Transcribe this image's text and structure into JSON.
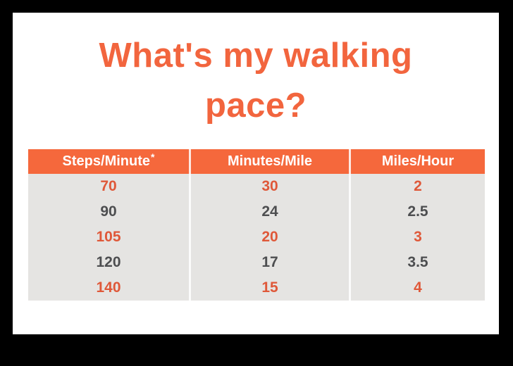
{
  "page": {
    "title_line1": "What's my walking",
    "title_line2": "pace?"
  },
  "table": {
    "header": {
      "cells": [
        "Steps/Minute",
        "Minutes/Mile",
        "Miles/Hour"
      ],
      "footnote_marker": "*"
    },
    "rows": [
      {
        "cells": [
          "70",
          "30",
          "2"
        ],
        "highlighted": true
      },
      {
        "cells": [
          "90",
          "24",
          "2.5"
        ],
        "highlighted": false
      },
      {
        "cells": [
          "105",
          "20",
          "3"
        ],
        "highlighted": true
      },
      {
        "cells": [
          "120",
          "17",
          "3.5"
        ],
        "highlighted": false
      },
      {
        "cells": [
          "140",
          "15",
          "4"
        ],
        "highlighted": true
      }
    ]
  },
  "chart_data": {
    "type": "table",
    "title": "What's my walking pace?",
    "columns": [
      "Steps/Minute*",
      "Minutes/Mile",
      "Miles/Hour"
    ],
    "rows": [
      [
        70,
        30,
        2
      ],
      [
        90,
        24,
        2.5
      ],
      [
        105,
        20,
        3
      ],
      [
        120,
        17,
        3.5
      ],
      [
        140,
        15,
        4
      ]
    ],
    "legend_position": "none",
    "grid": false
  },
  "colors": {
    "frame_black": "#000000",
    "panel_white": "#FFFFFF",
    "title_orange": "#F2653E",
    "header_orange": "#F5683C",
    "highlight_row_orange": "#DF5839",
    "plain_row_gray": "#4D4E50",
    "table_body_gray": "#E5E4E2"
  }
}
